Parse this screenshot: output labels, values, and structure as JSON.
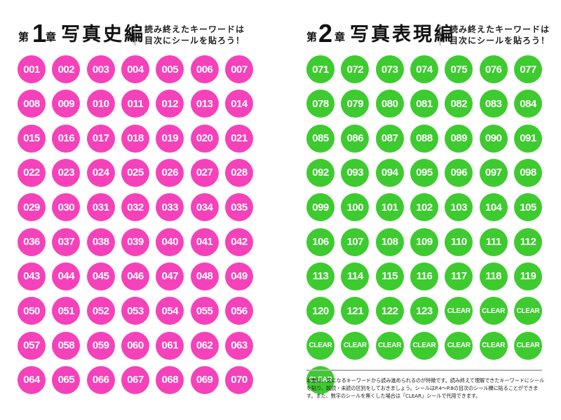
{
  "left_page": {
    "chapter_prefix": "第",
    "chapter_number": "1",
    "chapter_suffix": "章",
    "chapter_title": "写真史編",
    "instruction_line1": "読み終えたキーワードは",
    "instruction_line2": "目次にシールを貼ろう！",
    "sticker_color": "#f542ba",
    "stickers": [
      "001",
      "002",
      "003",
      "004",
      "005",
      "006",
      "007",
      "008",
      "009",
      "010",
      "011",
      "012",
      "013",
      "014",
      "015",
      "016",
      "017",
      "018",
      "019",
      "020",
      "021",
      "022",
      "023",
      "024",
      "025",
      "026",
      "027",
      "028",
      "029",
      "030",
      "031",
      "032",
      "033",
      "034",
      "035",
      "036",
      "037",
      "038",
      "039",
      "040",
      "041",
      "042",
      "043",
      "044",
      "045",
      "046",
      "047",
      "048",
      "049",
      "050",
      "051",
      "052",
      "053",
      "054",
      "055",
      "056",
      "057",
      "058",
      "059",
      "060",
      "061",
      "062",
      "063",
      "064",
      "065",
      "066",
      "067",
      "068",
      "069",
      "070"
    ]
  },
  "right_page": {
    "chapter_prefix": "第",
    "chapter_number": "2",
    "chapter_suffix": "章",
    "chapter_title": "写真表現編",
    "instruction_line1": "読み終えたキーワードは",
    "instruction_line2": "目次にシールを貼ろう！",
    "sticker_color": "#3dcb2f",
    "stickers": [
      "071",
      "072",
      "073",
      "074",
      "075",
      "076",
      "077",
      "078",
      "079",
      "080",
      "081",
      "082",
      "083",
      "084",
      "085",
      "086",
      "087",
      "088",
      "089",
      "090",
      "091",
      "092",
      "093",
      "094",
      "095",
      "096",
      "097",
      "098",
      "099",
      "100",
      "101",
      "102",
      "103",
      "104",
      "105",
      "106",
      "107",
      "108",
      "109",
      "110",
      "111",
      "112",
      "113",
      "114",
      "115",
      "116",
      "117",
      "118",
      "119",
      "120",
      "121",
      "122",
      "123",
      "CLEAR",
      "CLEAR",
      "CLEAR",
      "CLEAR",
      "CLEAR",
      "CLEAR",
      "CLEAR",
      "CLEAR",
      "CLEAR",
      "CLEAR",
      "CLEAR"
    ],
    "footnote": "本書は、気になるキーワードから読み進められるのが特徴です。読み終えて理解できたキーワードにシールを貼り、既読・未読の区別をしておきましょう。シールはP.4～P.8の目次のシール欄に貼ることができます。また、数字のシールを無くした場合は「CLEAR」シールで代用できます。"
  }
}
